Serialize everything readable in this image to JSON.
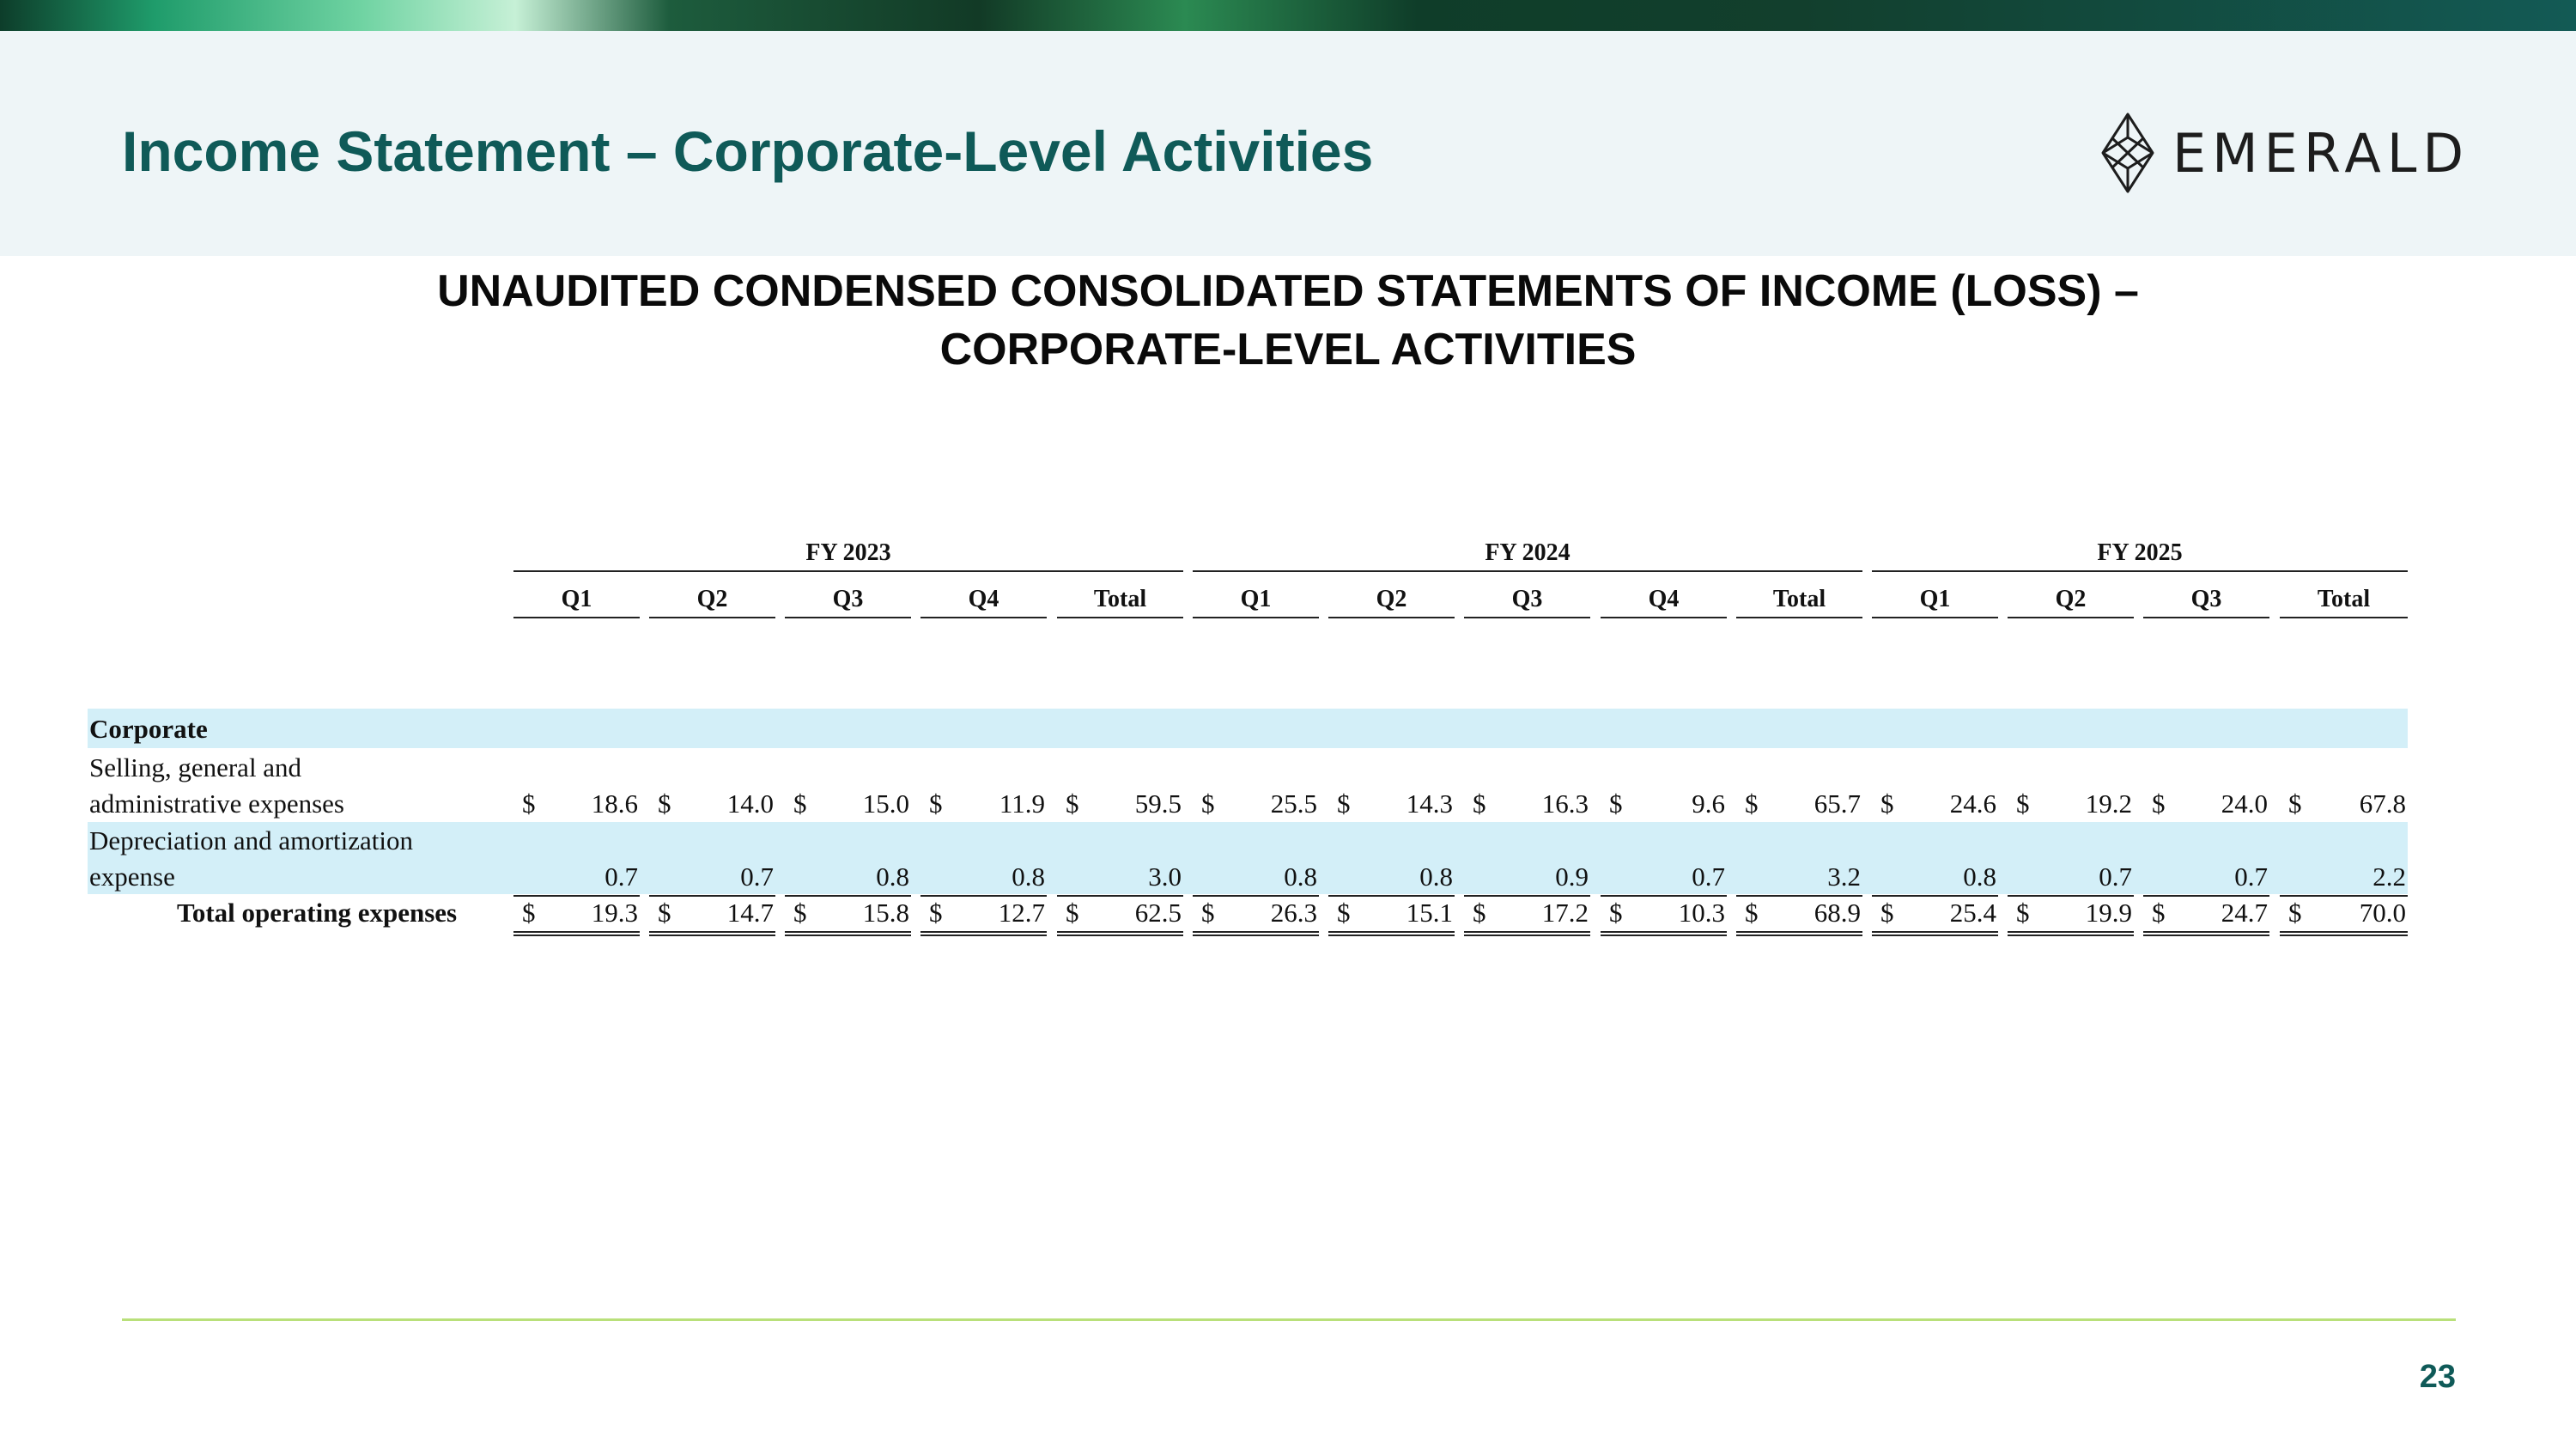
{
  "slide": {
    "title": "Income Statement – Corporate-Level Activities",
    "logo_text": "EMERALD",
    "subtitle_line1": "UNAUDITED CONDENSED CONSOLIDATED STATEMENTS OF INCOME (LOSS) –",
    "subtitle_line2": "CORPORATE-LEVEL ACTIVITIES",
    "page_number": "23"
  },
  "table": {
    "fiscal_years": [
      "FY 2023",
      "FY 2024",
      "FY 2025"
    ],
    "columns": [
      "Q1",
      "Q2",
      "Q3",
      "Q4",
      "Total",
      "Q1",
      "Q2",
      "Q3",
      "Q4",
      "Total",
      "Q1",
      "Q2",
      "Q3",
      "Total"
    ],
    "section_label": "Corporate",
    "currency_symbol": "$",
    "rows": [
      {
        "label_line1": "Selling, general and",
        "label_line2": "administrative expenses",
        "values": [
          "18.6",
          "14.0",
          "15.0",
          "11.9",
          "59.5",
          "25.5",
          "14.3",
          "16.3",
          "9.6",
          "65.7",
          "24.6",
          "19.2",
          "24.0",
          "67.8"
        ]
      },
      {
        "label_line1": "Depreciation and amortization",
        "label_line2": "expense",
        "values": [
          "0.7",
          "0.7",
          "0.8",
          "0.8",
          "3.0",
          "0.8",
          "0.8",
          "0.9",
          "0.7",
          "3.2",
          "0.8",
          "0.7",
          "0.7",
          "2.2"
        ]
      },
      {
        "label_line1": "Total operating expenses",
        "values": [
          "19.3",
          "14.7",
          "15.8",
          "12.7",
          "62.5",
          "26.3",
          "15.1",
          "17.2",
          "10.3",
          "68.9",
          "25.4",
          "19.9",
          "24.7",
          "70.0"
        ]
      }
    ]
  },
  "colors": {
    "title": "#0f5a58",
    "band": "#d3eff8",
    "header_bg": "#eef5f7",
    "footer_line": "#b9e07a"
  }
}
